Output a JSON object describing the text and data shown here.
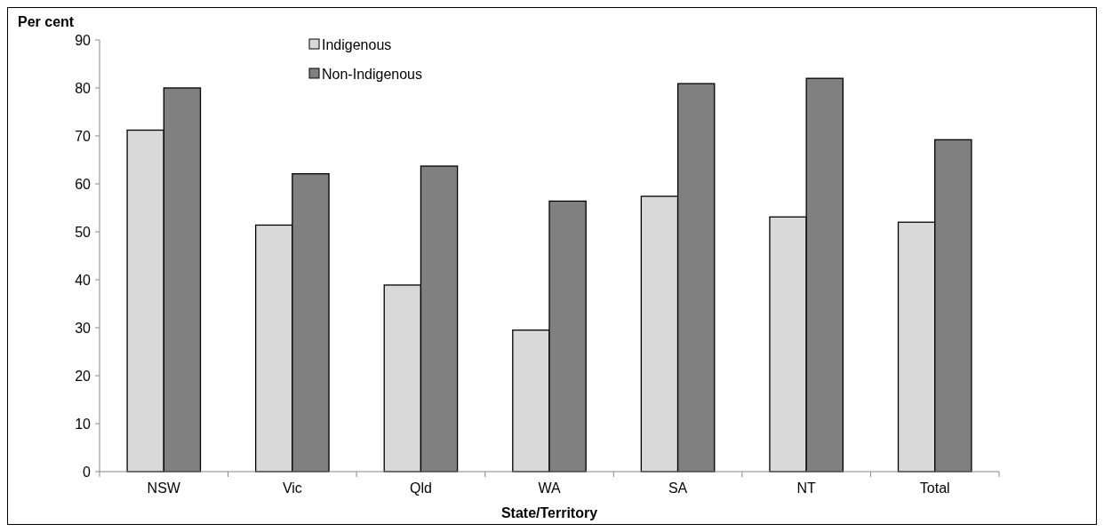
{
  "chart_data": {
    "type": "bar",
    "ylabel": "Per cent",
    "xlabel": "State/Territory",
    "categories": [
      "NSW",
      "Vic",
      "Qld",
      "WA",
      "SA",
      "NT",
      "Total"
    ],
    "series": [
      {
        "name": "Indigenous",
        "color": "#d9d9d9",
        "values": [
          71.2,
          51.4,
          38.9,
          29.5,
          57.4,
          53.1,
          52.0
        ]
      },
      {
        "name": "Non-Indigenous",
        "color": "#808080",
        "values": [
          80.0,
          62.1,
          63.7,
          56.4,
          80.9,
          82.0,
          69.2
        ]
      }
    ],
    "ylim": [
      0,
      90
    ],
    "yticks": [
      0,
      10,
      20,
      30,
      40,
      50,
      60,
      70,
      80,
      90
    ],
    "grid": false,
    "legend": "top"
  }
}
